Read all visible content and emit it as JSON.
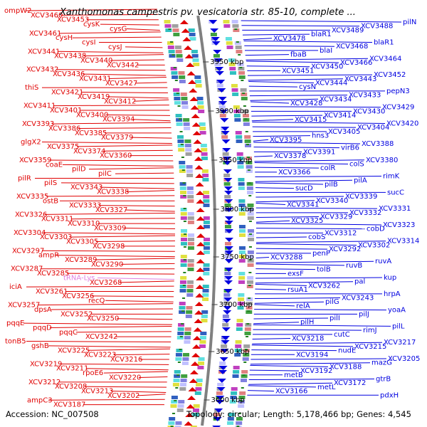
{
  "title": "Xanthomonas campestris pv. vesicatoria str. 85-10, complete ...",
  "footer": {
    "accession": "Accession: NC_007508",
    "topology": "Topology: circular; Length: 5,178,466 bp; Genes: 4,545"
  },
  "colors": {
    "left_genes": "#e00000",
    "right_genes": "#0000e0",
    "trna": "#e080e0",
    "axis": "#808080"
  },
  "scale_ticks": [
    "3950 kbp",
    "3900 kbp",
    "3850 kbp",
    "3800 kbp",
    "3750 kbp",
    "3700 kbp",
    "3650 kbp",
    "3600 kbp"
  ],
  "left_labels": [
    "ompW2",
    "XCV3460",
    "XCV3453",
    "cysK",
    "cysG",
    "XCV3461",
    "cysH",
    "cysI",
    "cysJ",
    "XCV3441",
    "XCV3438",
    "XCV3440",
    "XCV3442",
    "XCV3432",
    "XCV3436",
    "XCV3431",
    "XCV3427",
    "thiS",
    "XCV3421",
    "XCV3419",
    "XCV3412",
    "XCV3411",
    "XCV3401",
    "XCV3400",
    "XCV3394",
    "XCV3393",
    "XCV3386",
    "XCV3385",
    "XCV3379",
    "glgX2",
    "XCV3375",
    "XCV3374",
    "XCV3360",
    "XCV3359",
    "coaE",
    "pilD",
    "pilC",
    "pilR",
    "pilS",
    "XCV3343",
    "XCV3338",
    "XCV3335",
    "ostB",
    "XCV3333",
    "XCV3327",
    "XCV3326",
    "XCV3311",
    "XCV3310",
    "XCV3309",
    "XCV3304",
    "XCV3303",
    "XCV3305",
    "XCV3298",
    "XCV3297",
    "ampR",
    "XCV3289",
    "XCV3290",
    "XCV3287",
    "XCV3285",
    "tRNA-Lys",
    "XCV3268",
    "iciA",
    "XCV3261",
    "XCV3256",
    "recQ",
    "XCV3257",
    "dpsA",
    "XCV3252",
    "XCV3250",
    "pqqE",
    "pqqD",
    "pqqC",
    "XCV3242",
    "tonB5",
    "gshB",
    "XCV3225",
    "XCV3223",
    "XCV3216",
    "XCV3219",
    "XCV3211",
    "rpoE6",
    "XCV3220",
    "XCV3212",
    "XCV3208",
    "XCV3213",
    "XCV3202",
    "ampC3",
    "XCV3187"
  ],
  "right_labels": [
    "pilN",
    "XCV3488",
    "XCV3489",
    "blaR1",
    "XCV3478",
    "blaR1",
    "XCV3468",
    "blaI",
    "fbaB",
    "XCV3464",
    "XCV3466",
    "XCV3450",
    "XCV3451",
    "XCV3452",
    "XCV3443",
    "XCV3444",
    "cysN",
    "pepN3",
    "XCV3433",
    "XCV3434",
    "XCV3428",
    "XCV3429",
    "XCV3430",
    "XCV3414",
    "XCV3415",
    "XCV3420",
    "XCV3404",
    "XCV3405",
    "hns3",
    "XCV3395",
    "XCV3388",
    "virB6",
    "XCV3391",
    "XCV3378",
    "XCV3380",
    "colS",
    "colR",
    "XCV3366",
    "rimK",
    "pilA",
    "pilB",
    "sucD",
    "sucC",
    "XCV3339",
    "XCV3340",
    "XCV3341",
    "XCV3331",
    "XCV3332",
    "XCV3329",
    "XCV3325",
    "XCV3323",
    "cobD",
    "XCV3312",
    "cobS",
    "XCV3314",
    "XCV3302",
    "XCV3292",
    "penP",
    "XCV3288",
    "ruvA",
    "ruvB",
    "tolB",
    "exsF",
    "kup",
    "pal",
    "XCV3262",
    "rsuA1",
    "hrpA",
    "XCV3243",
    "pilG",
    "relA",
    "yoaA",
    "pilJ",
    "pilI",
    "pilH",
    "pilL",
    "rimJ",
    "cutC",
    "XCV3218",
    "XCV3217",
    "XCV3215",
    "nudE",
    "XCV3194",
    "XCV3205",
    "mazG",
    "XCV3188",
    "XCV3192",
    "metB",
    "gtrB",
    "XCV3172",
    "metL",
    "XCV3166",
    "pdxH"
  ]
}
